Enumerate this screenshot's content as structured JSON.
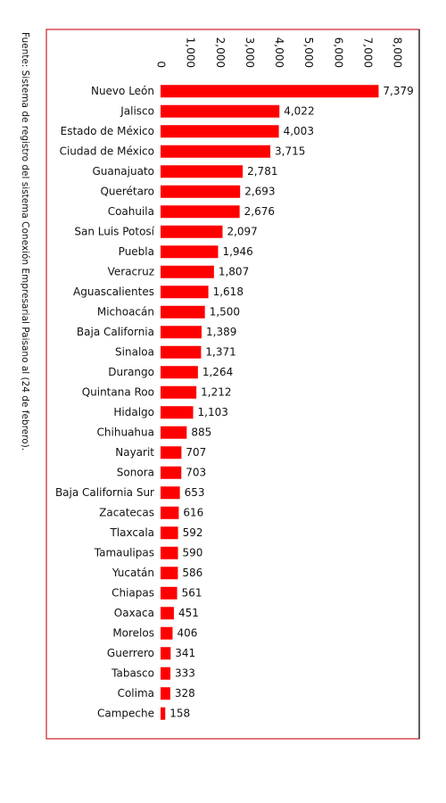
{
  "chart_data": {
    "type": "bar",
    "orientation": "horizontal",
    "note": "Fuente: Sistema de registro del sistema Conexión Empresarial Paisano al (24 de febrero).",
    "categories": [
      "Nuevo León",
      "Jalisco",
      "Estado de México",
      "Ciudad de México",
      "Guanajuato",
      "Querétaro",
      "Coahuila",
      "San Luis Potosí",
      "Puebla",
      "Veracruz",
      "Aguascalientes",
      "Michoacán",
      "Baja California",
      "Sinaloa",
      "Durango",
      "Quintana Roo",
      "Hidalgo",
      "Chihuahua",
      "Nayarit",
      "Sonora",
      "Baja California Sur",
      "Zacatecas",
      "Tlaxcala",
      "Tamaulipas",
      "Yucatán",
      "Chiapas",
      "Oaxaca",
      "Morelos",
      "Guerrero",
      "Tabasco",
      "Colima",
      "Campeche"
    ],
    "values": [
      7379,
      4022,
      4003,
      3715,
      2781,
      2693,
      2676,
      2097,
      1946,
      1807,
      1618,
      1500,
      1389,
      1371,
      1264,
      1212,
      1103,
      885,
      707,
      703,
      653,
      616,
      592,
      590,
      586,
      561,
      451,
      406,
      341,
      333,
      328,
      158
    ],
    "value_labels": [
      "7,379",
      "4,022",
      "4,003",
      "3,715",
      "2,781",
      "2,693",
      "2,676",
      "2,097",
      "1,946",
      "1,807",
      "1,618",
      "1,500",
      "1,389",
      "1,371",
      "1,264",
      "1,212",
      "1,103",
      "885",
      "707",
      "703",
      "653",
      "616",
      "592",
      "590",
      "586",
      "561",
      "451",
      "406",
      "341",
      "333",
      "328",
      "158"
    ],
    "color": "#ff0000",
    "xlim": [
      0,
      8000
    ],
    "xticks": [
      0,
      {
        "value": 1000,
        "label": "1,000"
      },
      {
        "value": 2000,
        "label": "2,000"
      },
      {
        "value": 3000,
        "label": "3,000"
      },
      {
        "value": 4000,
        "label": "4,000"
      },
      {
        "value": 5000,
        "label": "5,000"
      },
      {
        "value": 6000,
        "label": "6,000"
      },
      {
        "value": 7000,
        "label": "7,000"
      },
      {
        "value": 8000,
        "label": "8,000"
      }
    ],
    "grid": false
  }
}
